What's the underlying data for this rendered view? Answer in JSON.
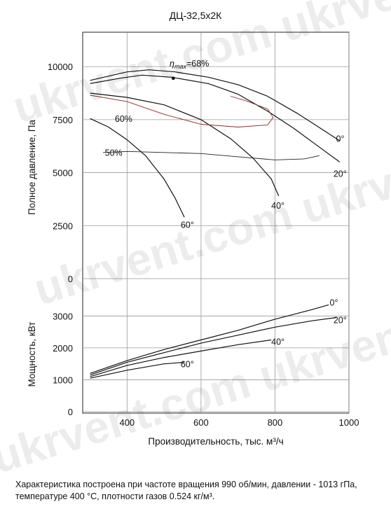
{
  "watermark": "ukrvent.com ukrvent.ua",
  "chart_data": {
    "type": "line",
    "title": "ДЦ-32,5х2К",
    "xlabel": "Производительность, тыс. м³/ч",
    "xlim": [
      280,
      1000
    ],
    "xticks": [
      "400",
      "600",
      "800",
      "1000"
    ],
    "xtick_values": [
      400,
      600,
      800,
      1000
    ],
    "panels": [
      {
        "id": "pressure",
        "ylabel": "Полное давление, Па",
        "ylim": [
          0,
          10500
        ],
        "ytick_values": [
          0,
          2500,
          5000,
          7500,
          10000
        ],
        "yticks": [
          "0",
          "2500",
          "5000",
          "7500",
          "10000"
        ],
        "series": [
          {
            "name": "0°",
            "x": [
              300,
              400,
              460,
              530,
              620,
              700,
              780,
              860,
              940,
              975
            ],
            "y": [
              9350,
              9750,
              9850,
              9750,
              9500,
              9150,
              8600,
              7800,
              6900,
              6500
            ]
          },
          {
            "name": "20°",
            "x": [
              300,
              380,
              440,
              520,
              620,
              700,
              780,
              850,
              920,
              975
            ],
            "y": [
              9200,
              9450,
              9600,
              9500,
              9200,
              8700,
              7900,
              7100,
              6200,
              5500
            ]
          },
          {
            "name": "40°",
            "x": [
              300,
              400,
              500,
              600,
              680,
              740,
              790,
              810
            ],
            "y": [
              8750,
              8550,
              8200,
              7500,
              6600,
              5700,
              4700,
              3900
            ]
          },
          {
            "name": "60°",
            "x": [
              300,
              350,
              400,
              450,
              500,
              530,
              555
            ],
            "y": [
              7550,
              7150,
              6550,
              5800,
              4700,
              3800,
              2900
            ]
          }
        ],
        "efficiency_curves": [
          {
            "name": "ηmax=68%",
            "x": [
              525
            ],
            "y": [
              9450
            ]
          },
          {
            "name": "60%",
            "x": [
              300,
              400,
              500,
              600,
              700,
              780,
              795,
              780,
              720,
              680
            ],
            "y": [
              8650,
              8350,
              7750,
              7280,
              7150,
              7250,
              7600,
              8000,
              8400,
              8600
            ]
          },
          {
            "name": "50%",
            "x": [
              335,
              400,
              500,
              600,
              700,
              800,
              880,
              920
            ],
            "y": [
              5950,
              6000,
              5950,
              5900,
              5750,
              5600,
              5650,
              5800
            ]
          }
        ],
        "labels": [
          {
            "text": "ηmax=68%",
            "x": 515,
            "y": 10000
          },
          {
            "text": "60%",
            "x": 367,
            "y": 7400
          },
          {
            "text": "50%",
            "x": 340,
            "y": 5800
          },
          {
            "text": "0°",
            "x": 965,
            "y": 6450
          },
          {
            "text": "20°",
            "x": 958,
            "y": 4800
          },
          {
            "text": "40°",
            "x": 790,
            "y": 3300
          },
          {
            "text": "60°",
            "x": 545,
            "y": 2400
          }
        ]
      },
      {
        "id": "power",
        "ylabel": "Мощность, кВт",
        "ylim": [
          0,
          3600
        ],
        "ytick_values": [
          0,
          1000,
          2000,
          3000
        ],
        "yticks": [
          "0",
          "1000",
          "2000",
          "3000"
        ],
        "series": [
          {
            "name": "0°",
            "x": [
              300,
              400,
              500,
              600,
              700,
              800,
              900,
              945
            ],
            "y": [
              1200,
              1600,
              1950,
              2250,
              2550,
              2900,
              3200,
              3350
            ]
          },
          {
            "name": "20°",
            "x": [
              300,
              400,
              500,
              600,
              700,
              800,
              900,
              965
            ],
            "y": [
              1150,
              1550,
              1850,
              2150,
              2400,
              2650,
              2850,
              2950
            ]
          },
          {
            "name": "40°",
            "x": [
              300,
              400,
              500,
              600,
              700,
              790
            ],
            "y": [
              1100,
              1450,
              1700,
              1900,
              2100,
              2250
            ]
          },
          {
            "name": "60°",
            "x": [
              300,
              400,
              500,
              555
            ],
            "y": [
              1050,
              1300,
              1500,
              1550
            ]
          }
        ],
        "labels": [
          {
            "text": "0°",
            "x": 948,
            "y": 3330
          },
          {
            "text": "20°",
            "x": 958,
            "y": 2780
          },
          {
            "text": "40°",
            "x": 790,
            "y": 2100
          },
          {
            "text": "60°",
            "x": 545,
            "y": 1390
          }
        ]
      }
    ],
    "grid": true,
    "footnote": "Характеристика построена при частоте вращения 990 об/мин, давлении - 1013 гПа, температуре 400 °С, плотности газов 0.524 кг/м³."
  }
}
